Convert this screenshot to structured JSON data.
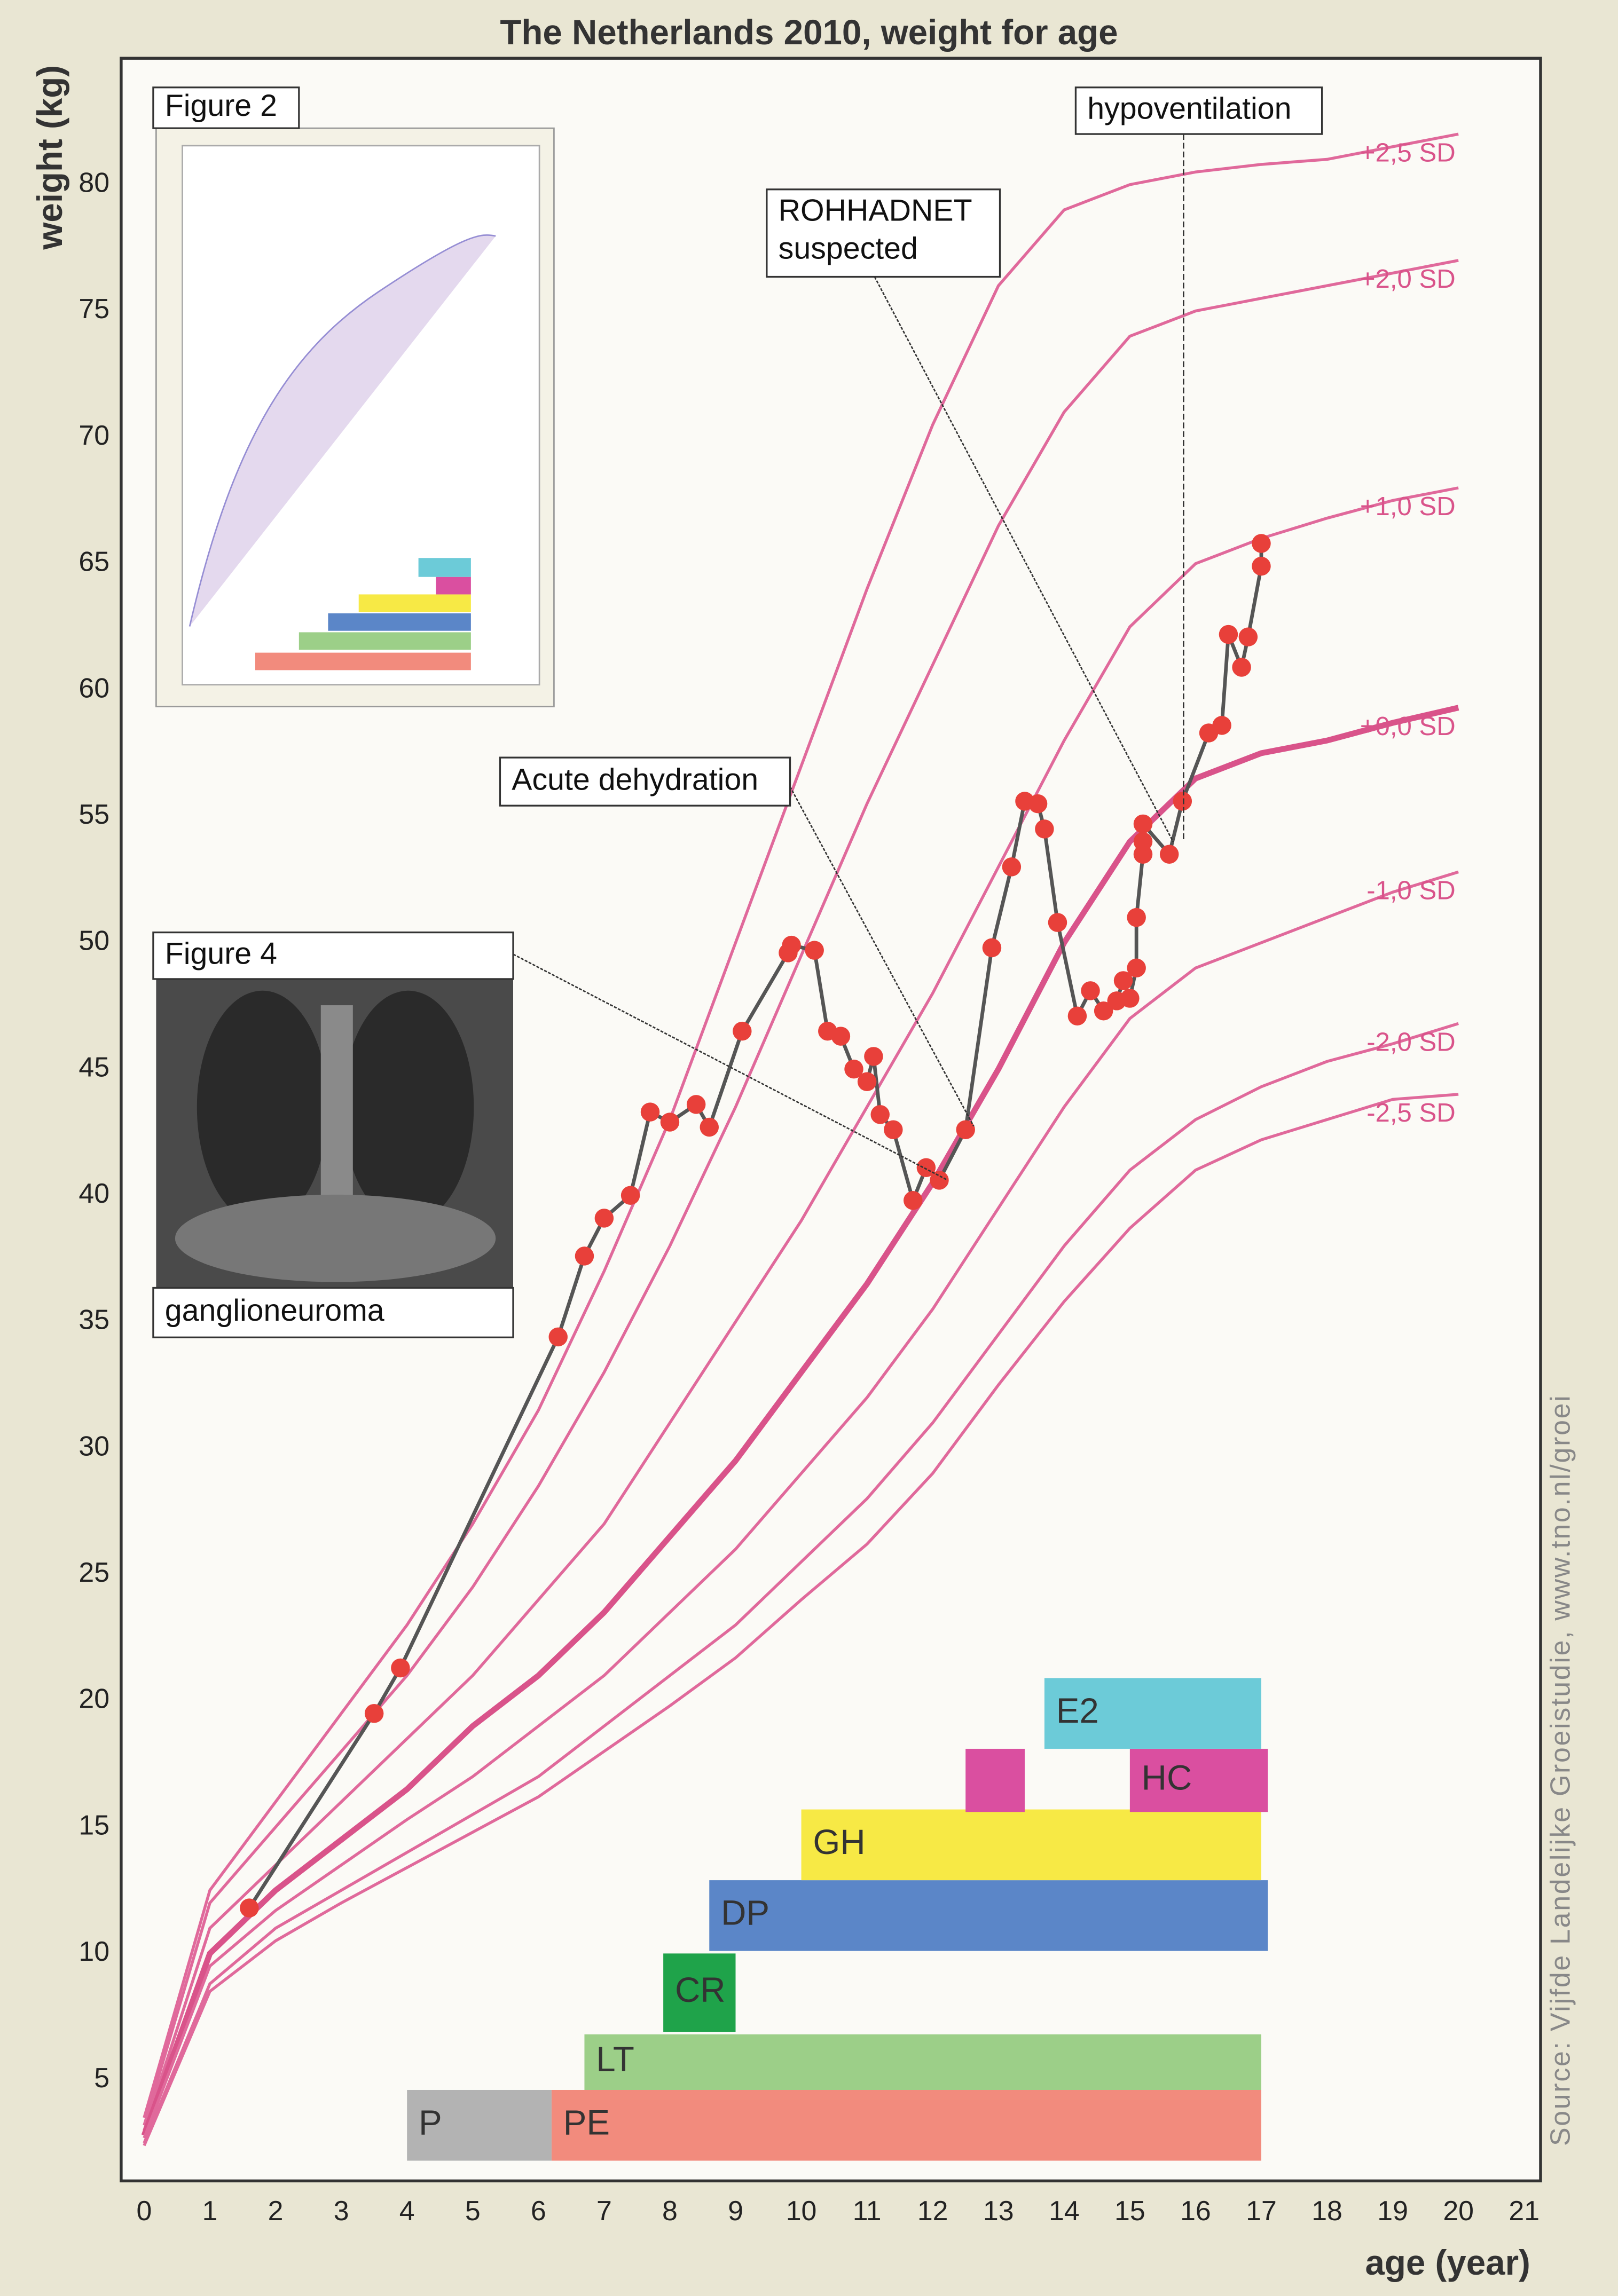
{
  "chart_data": {
    "type": "line",
    "title": "The Netherlands 2010, weight for age",
    "x_label": "age (year)",
    "y_label": "weight (kg)",
    "xlim": [
      -0.35,
      21.25
    ],
    "ylim": [
      1,
      85
    ],
    "xticks": [
      0,
      1,
      2,
      3,
      4,
      5,
      6,
      7,
      8,
      9,
      10,
      11,
      12,
      13,
      14,
      15,
      16,
      17,
      18,
      19,
      20,
      21
    ],
    "yticks": [
      5,
      10,
      15,
      20,
      25,
      30,
      35,
      40,
      45,
      50,
      55,
      60,
      65,
      70,
      75,
      80
    ],
    "grid": true,
    "x": [
      0,
      1,
      2,
      3,
      4,
      5,
      6,
      7,
      8,
      9,
      10,
      11,
      12,
      13,
      14,
      15,
      16,
      17,
      18,
      19,
      20
    ],
    "series": [
      {
        "name": "+2,5 SD",
        "color": "#e0699b",
        "values": [
          3.5,
          12.5,
          16,
          19.5,
          23,
          27,
          31.5,
          37,
          43,
          50,
          57,
          64,
          70.5,
          76,
          79,
          80,
          80.5,
          80.8,
          81,
          81.5,
          82
        ]
      },
      {
        "name": "+2,0 SD",
        "color": "#e0699b",
        "values": [
          3.2,
          12,
          15,
          18,
          21,
          24.5,
          28.5,
          33,
          38,
          43.5,
          49.5,
          55.5,
          61,
          66.5,
          71,
          74,
          75,
          75.5,
          76,
          76.5,
          77
        ]
      },
      {
        "name": "+1,0 SD",
        "color": "#e0699b",
        "values": [
          3,
          11,
          13.5,
          16,
          18.5,
          21,
          24,
          27,
          31,
          35,
          39,
          43.5,
          48,
          53,
          58,
          62.5,
          65,
          66,
          66.8,
          67.5,
          68
        ]
      },
      {
        "name": "+0,0 SD",
        "color": "#d9538a",
        "values": [
          2.8,
          10,
          12.5,
          14.5,
          16.5,
          19,
          21,
          23.5,
          26.5,
          29.5,
          33,
          36.5,
          40.5,
          45,
          50,
          54,
          56.5,
          57.5,
          58,
          58.7,
          59.3
        ]
      },
      {
        "name": "-1,0 SD",
        "color": "#e0699b",
        "values": [
          2.7,
          9.5,
          11.7,
          13.5,
          15.3,
          17,
          19,
          21,
          23.5,
          26,
          29,
          32,
          35.5,
          39.5,
          43.5,
          47,
          49,
          50,
          51,
          52,
          52.8
        ]
      },
      {
        "name": "-2,0 SD",
        "color": "#e0699b",
        "values": [
          2.5,
          8.8,
          11,
          12.5,
          14,
          15.5,
          17,
          19,
          21,
          23,
          25.5,
          28,
          31,
          34.5,
          38,
          41,
          43,
          44.3,
          45.3,
          46,
          46.8
        ]
      },
      {
        "name": "-2,5 SD",
        "color": "#e0699b",
        "values": [
          2.4,
          8.5,
          10.5,
          12,
          13.4,
          14.8,
          16.2,
          18,
          19.8,
          21.7,
          24,
          26.2,
          29,
          32.5,
          35.8,
          38.7,
          41,
          42.2,
          43,
          43.8,
          44
        ]
      }
    ],
    "patient": {
      "color": "#e8403a",
      "line_color": "#555555",
      "x": [
        1.6,
        3.5,
        3.9,
        6.3,
        6.7,
        7.0,
        7.4,
        7.7,
        8.0,
        8.4,
        8.6,
        9.1,
        9.8,
        9.85,
        10.2,
        10.4,
        10.6,
        10.8,
        11.0,
        11.1,
        11.2,
        11.4,
        11.7,
        11.9,
        12.1,
        12.5,
        12.9,
        13.2,
        13.4,
        13.6,
        13.7,
        13.9,
        14.2,
        14.4,
        14.6,
        14.8,
        14.9,
        15.0,
        15.1,
        15.1,
        15.2,
        15.2,
        15.2,
        15.6,
        15.8,
        16.2,
        16.4,
        16.5,
        16.7,
        16.8,
        17.0,
        17.0
      ],
      "values": [
        11.8,
        19.5,
        21.3,
        34.4,
        37.6,
        39.1,
        40.0,
        43.3,
        42.9,
        43.6,
        42.7,
        46.5,
        49.6,
        49.9,
        49.7,
        46.5,
        46.3,
        45.0,
        44.5,
        45.5,
        43.2,
        42.6,
        39.8,
        41.1,
        40.6,
        42.6,
        49.8,
        53.0,
        55.6,
        55.5,
        54.5,
        50.8,
        47.1,
        48.1,
        47.3,
        47.7,
        48.5,
        47.8,
        49.0,
        51.0,
        53.5,
        54.0,
        54.7,
        53.5,
        55.6,
        58.3,
        58.6,
        62.2,
        60.9,
        62.1,
        64.9,
        65.8
      ]
    },
    "treatments": [
      {
        "name": "P",
        "start": 4.0,
        "end": 6.2,
        "color": "#b3b3b3"
      },
      {
        "name": "PE",
        "start": 6.2,
        "end": 17.0,
        "color": "#f28b7d"
      },
      {
        "name": "LT",
        "start": 6.7,
        "end": 17.0,
        "color": "#9ccf88"
      },
      {
        "name": "CR",
        "start": 7.9,
        "end": 9.0,
        "color": "#1fa34a"
      },
      {
        "name": "DP",
        "start": 8.6,
        "end": 17.1,
        "color": "#5b86c8"
      },
      {
        "name": "GH",
        "start": 10.0,
        "end": 17.0,
        "color": "#f7e945"
      },
      {
        "start": 12.5,
        "end": 13.4,
        "color": "#da4fa0"
      },
      {
        "name": "HC",
        "start": 15.0,
        "end": 17.1,
        "color": "#da4fa0"
      },
      {
        "name": "E2",
        "start": 13.7,
        "end": 17.0,
        "color": "#6ccbd8"
      }
    ],
    "annotations": [
      "Figure 2",
      "Figure 4",
      "ganglioneuroma",
      "Acute dehydration",
      [
        "ROHHADNET",
        "suspected"
      ],
      "hypoventilation"
    ],
    "source": "Source: Vijfde Landelijke Groeistudie, www.tno.nl/groei"
  }
}
